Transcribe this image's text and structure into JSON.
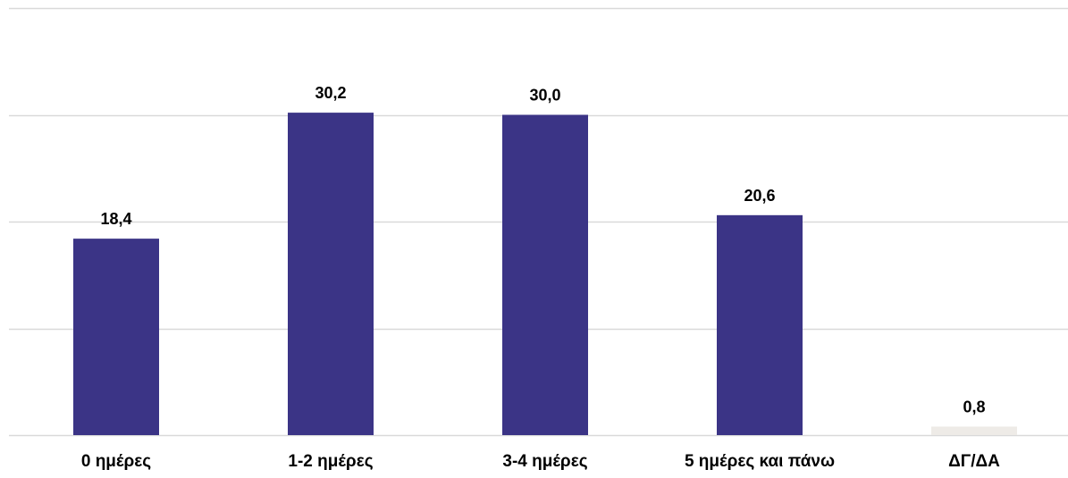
{
  "chart_data": {
    "type": "bar",
    "categories": [
      "0 ημέρες",
      "1-2 ημέρες",
      "3-4 ημέρες",
      "5 ημέρες και πάνω",
      "ΔΓ/ΔΑ"
    ],
    "values": [
      18.4,
      30.2,
      30.0,
      20.6,
      0.8
    ],
    "value_labels": [
      "18,4",
      "30,2",
      "30,0",
      "20,6",
      "0,8"
    ],
    "bar_colors": [
      "#3b3486",
      "#3b3486",
      "#3b3486",
      "#3b3486",
      "#eeebe7"
    ],
    "ylim": [
      0,
      40
    ],
    "gridlines": [
      0,
      10,
      20,
      30,
      40
    ],
    "grid": true,
    "gridline_color": "#d9d9d9",
    "label_color": "#000000",
    "title": "",
    "xlabel": "",
    "ylabel": ""
  }
}
